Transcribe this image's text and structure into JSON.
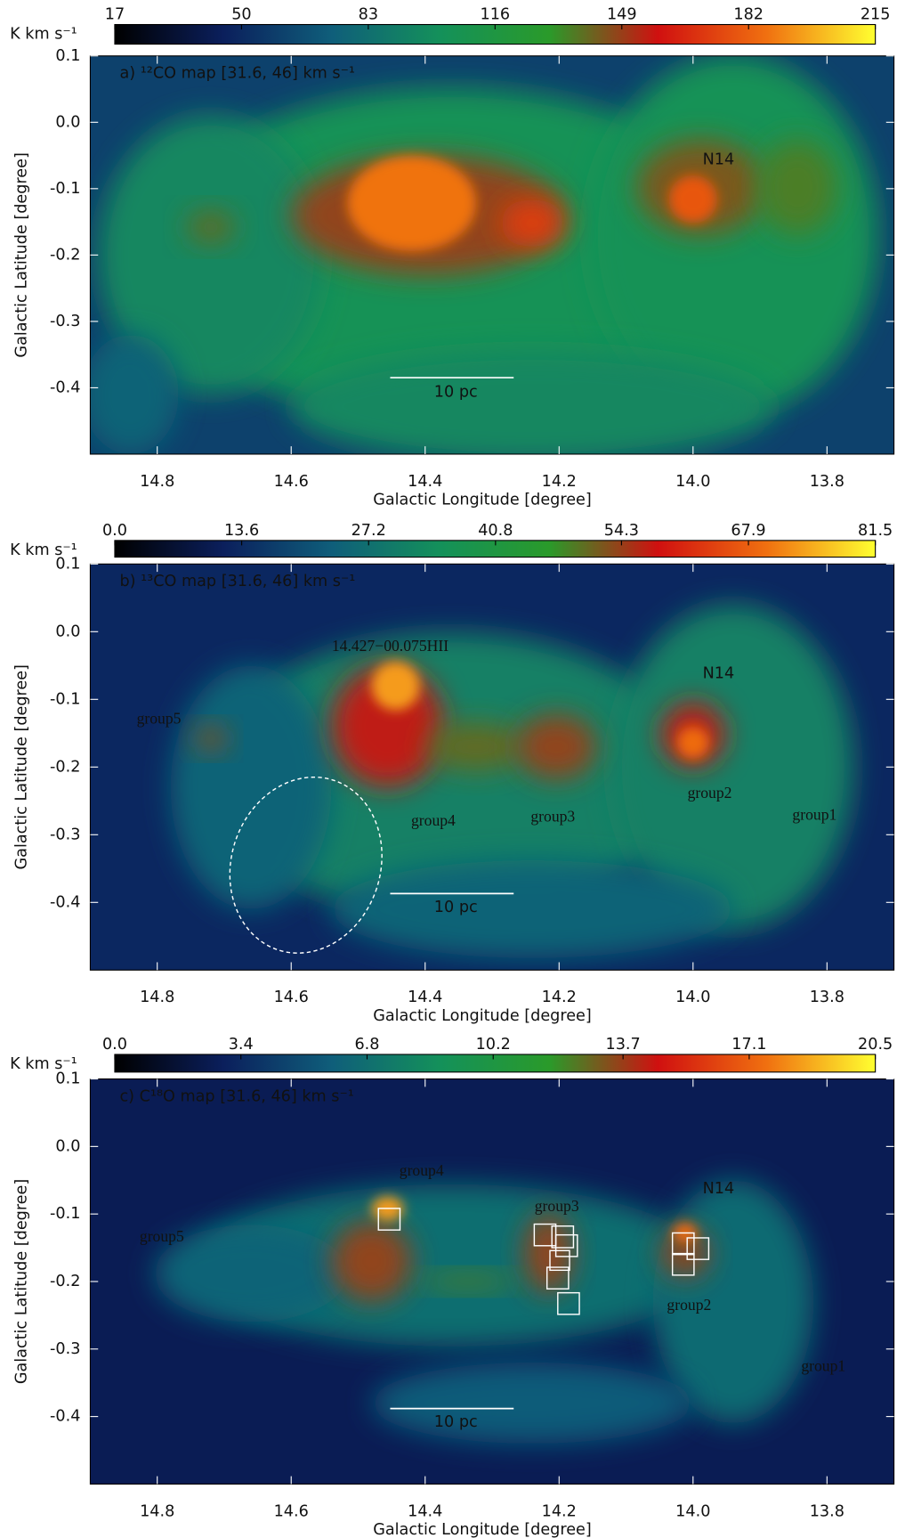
{
  "chart_data": [
    {
      "type": "heatmap",
      "title": "a) ¹²CO map [31.6, 46] km s⁻¹",
      "colorbar_label": "K km s⁻¹",
      "colormap": [
        "#000000",
        "#0b1f5c",
        "#0f5e7a",
        "#14915a",
        "#2a9a2a",
        "#d01010",
        "#f07010",
        "#ffff30"
      ],
      "clim": [
        17,
        215
      ],
      "cticks": [
        17,
        50,
        83,
        116,
        149,
        182,
        215
      ],
      "x_label": "Galactic Longitude [degree]",
      "y_label": "Galactic Latitude [degree]",
      "xlim": [
        14.9,
        13.7
      ],
      "ylim": [
        -0.5,
        0.1
      ],
      "xticks": [
        14.8,
        14.6,
        14.4,
        14.2,
        {
          "value": 14,
          "label": "14.0"
        },
        13.8
      ],
      "yticks": [
        0.1,
        {
          "value": 0,
          "label": "0.0"
        },
        -0.1,
        -0.2,
        -0.3,
        -0.4
      ],
      "annotations": [
        "N14",
        "10 pc"
      ]
    },
    {
      "type": "heatmap",
      "title": "b) ¹³CO map [31.6, 46] km s⁻¹",
      "colorbar_label": "K km s⁻¹",
      "colormap": [
        "#000000",
        "#0b1f5c",
        "#0f5e7a",
        "#14915a",
        "#2a9a2a",
        "#d01010",
        "#f07010",
        "#ffff30"
      ],
      "clim": [
        0,
        81.5
      ],
      "cticks": [
        {
          "value": 0,
          "label": "0.0"
        },
        13.6,
        27.2,
        40.8,
        54.3,
        67.9,
        81.5
      ],
      "x_label": "Galactic Longitude [degree]",
      "y_label": "Galactic Latitude [degree]",
      "xlim": [
        14.9,
        13.7
      ],
      "ylim": [
        -0.5,
        0.1
      ],
      "xticks": [
        14.8,
        14.6,
        14.4,
        14.2,
        {
          "value": 14,
          "label": "14.0"
        },
        13.8
      ],
      "yticks": [
        0.1,
        {
          "value": 0,
          "label": "0.0"
        },
        -0.1,
        -0.2,
        -0.3,
        -0.4
      ],
      "annotations": [
        "14.427−00.075HII",
        "group5",
        "group4",
        "group3",
        "group2",
        "group1",
        "N14",
        "10 pc"
      ]
    },
    {
      "type": "heatmap",
      "title": "c) C¹⁸O map [31.6, 46] km s⁻¹",
      "colorbar_label": "K km s⁻¹",
      "colormap": [
        "#000000",
        "#0b1f5c",
        "#0f5e7a",
        "#14915a",
        "#2a9a2a",
        "#d01010",
        "#f07010",
        "#ffff30"
      ],
      "clim": [
        0,
        20.5
      ],
      "cticks": [
        {
          "value": 0,
          "label": "0.0"
        },
        3.4,
        6.8,
        10.2,
        13.7,
        17.1,
        20.5
      ],
      "x_label": "Galactic Longitude [degree]",
      "y_label": "Galactic Latitude [degree]",
      "xlim": [
        14.9,
        13.7
      ],
      "ylim": [
        -0.5,
        0.1
      ],
      "xticks": [
        14.8,
        14.6,
        14.4,
        14.2,
        {
          "value": 14,
          "label": "14.0"
        },
        13.8
      ],
      "yticks": [
        0.1,
        {
          "value": 0,
          "label": "0.0"
        },
        -0.1,
        -0.2,
        -0.3,
        -0.4
      ],
      "annotations": [
        "group4",
        "group3",
        "group5",
        "group2",
        "group1",
        "N14",
        "10 pc"
      ]
    }
  ]
}
